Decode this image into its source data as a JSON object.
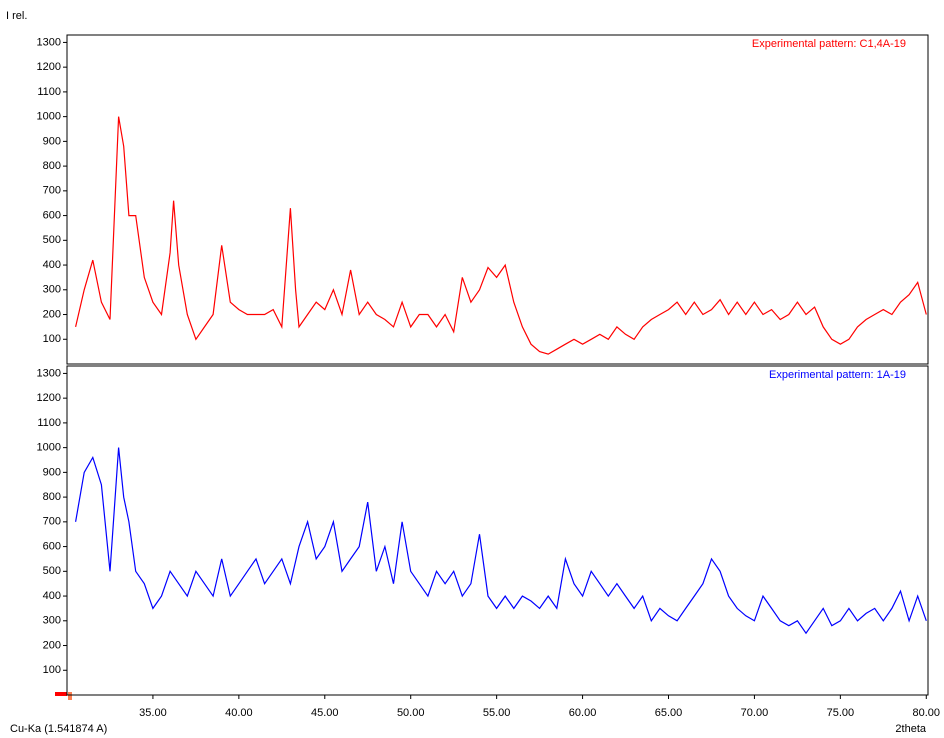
{
  "chart_data": [
    {
      "type": "line",
      "y_label": "I rel.",
      "legend": "upper right",
      "xlim": [
        30,
        80.1
      ],
      "ylim": [
        0,
        1330
      ],
      "yticks": [
        100,
        200,
        300,
        400,
        500,
        600,
        700,
        800,
        900,
        1000,
        1100,
        1200,
        1300
      ],
      "series": [
        {
          "name": "Experimental pattern: C1,4A-19",
          "color": "#ff0000",
          "x": [
            30.5,
            31,
            31.5,
            32,
            32.5,
            33,
            33.3,
            33.6,
            34,
            34.5,
            35,
            35.5,
            36,
            36.2,
            36.5,
            37,
            37.5,
            38,
            38.5,
            39,
            39.5,
            40,
            40.5,
            41,
            41.5,
            42,
            42.5,
            43,
            43.3,
            43.5,
            44,
            44.5,
            45,
            45.5,
            46,
            46.5,
            47,
            47.5,
            48,
            48.5,
            49,
            49.5,
            50,
            50.5,
            51,
            51.5,
            52,
            52.5,
            53,
            53.5,
            54,
            54.5,
            55,
            55.5,
            56,
            56.5,
            57,
            57.5,
            58,
            58.5,
            59,
            59.5,
            60,
            60.5,
            61,
            61.5,
            62,
            62.5,
            63,
            63.5,
            64,
            64.5,
            65,
            65.5,
            66,
            66.5,
            67,
            67.5,
            68,
            68.5,
            69,
            69.5,
            70,
            70.5,
            71,
            71.5,
            72,
            72.5,
            73,
            73.5,
            74,
            74.5,
            75,
            75.5,
            76,
            76.5,
            77,
            77.5,
            78,
            78.5,
            79,
            79.5,
            80
          ],
          "values": [
            150,
            300,
            420,
            250,
            180,
            1000,
            880,
            600,
            600,
            350,
            250,
            200,
            450,
            660,
            400,
            200,
            100,
            150,
            200,
            480,
            250,
            220,
            200,
            200,
            200,
            220,
            150,
            630,
            300,
            150,
            200,
            250,
            220,
            300,
            200,
            380,
            200,
            250,
            200,
            180,
            150,
            250,
            150,
            200,
            200,
            150,
            200,
            130,
            350,
            250,
            300,
            390,
            350,
            400,
            250,
            150,
            80,
            50,
            40,
            60,
            80,
            100,
            80,
            100,
            120,
            100,
            150,
            120,
            100,
            150,
            180,
            200,
            220,
            250,
            200,
            250,
            200,
            220,
            260,
            200,
            250,
            200,
            250,
            200,
            220,
            180,
            200,
            250,
            200,
            230,
            150,
            100,
            80,
            100,
            150,
            180,
            200,
            220,
            200,
            250,
            280,
            330,
            200
          ]
        }
      ]
    },
    {
      "type": "line",
      "x_label": "2theta",
      "annotation": "Cu-Ka (1.541874 A)",
      "legend": "upper right",
      "xlim": [
        30,
        80.1
      ],
      "ylim": [
        0,
        1330
      ],
      "xticks": [
        {
          "value": 35,
          "label": "35.00"
        },
        {
          "value": 40,
          "label": "40.00"
        },
        {
          "value": 45,
          "label": "45.00"
        },
        {
          "value": 50,
          "label": "50.00"
        },
        {
          "value": 55,
          "label": "55.00"
        },
        {
          "value": 60,
          "label": "60.00"
        },
        {
          "value": 65,
          "label": "65.00"
        },
        {
          "value": 70,
          "label": "70.00"
        },
        {
          "value": 75,
          "label": "75.00"
        },
        {
          "value": 80,
          "label": "80.00"
        }
      ],
      "yticks": [
        100,
        200,
        300,
        400,
        500,
        600,
        700,
        800,
        900,
        1000,
        1100,
        1200,
        1300
      ],
      "series": [
        {
          "name": "Experimental pattern: 1A-19",
          "color": "#0000ff",
          "x": [
            30.5,
            31,
            31.5,
            32,
            32.5,
            33,
            33.3,
            33.6,
            34,
            34.5,
            35,
            35.5,
            36,
            36.5,
            37,
            37.5,
            38,
            38.5,
            39,
            39.5,
            40,
            40.5,
            41,
            41.5,
            42,
            42.5,
            43,
            43.5,
            44,
            44.5,
            45,
            45.5,
            46,
            46.5,
            47,
            47.5,
            48,
            48.5,
            49,
            49.5,
            50,
            50.5,
            51,
            51.5,
            52,
            52.5,
            53,
            53.5,
            54,
            54.5,
            55,
            55.5,
            56,
            56.5,
            57,
            57.5,
            58,
            58.5,
            59,
            59.5,
            60,
            60.5,
            61,
            61.5,
            62,
            62.5,
            63,
            63.5,
            64,
            64.5,
            65,
            65.5,
            66,
            66.5,
            67,
            67.5,
            68,
            68.5,
            69,
            69.5,
            70,
            70.5,
            71,
            71.5,
            72,
            72.5,
            73,
            73.5,
            74,
            74.5,
            75,
            75.5,
            76,
            76.5,
            77,
            77.5,
            78,
            78.5,
            79,
            79.5,
            80
          ],
          "values": [
            700,
            900,
            960,
            850,
            500,
            1000,
            800,
            700,
            500,
            450,
            350,
            400,
            500,
            450,
            400,
            500,
            450,
            400,
            550,
            400,
            450,
            500,
            550,
            450,
            500,
            550,
            450,
            600,
            700,
            550,
            600,
            700,
            500,
            550,
            600,
            780,
            500,
            600,
            450,
            700,
            500,
            450,
            400,
            500,
            450,
            500,
            400,
            450,
            650,
            400,
            350,
            400,
            350,
            400,
            380,
            350,
            400,
            350,
            550,
            450,
            400,
            500,
            450,
            400,
            450,
            400,
            350,
            400,
            300,
            350,
            320,
            300,
            350,
            400,
            450,
            550,
            500,
            400,
            350,
            320,
            300,
            400,
            350,
            300,
            280,
            300,
            250,
            300,
            350,
            280,
            300,
            350,
            300,
            330,
            350,
            300,
            350,
            420,
            300,
            400,
            300
          ]
        }
      ]
    }
  ]
}
